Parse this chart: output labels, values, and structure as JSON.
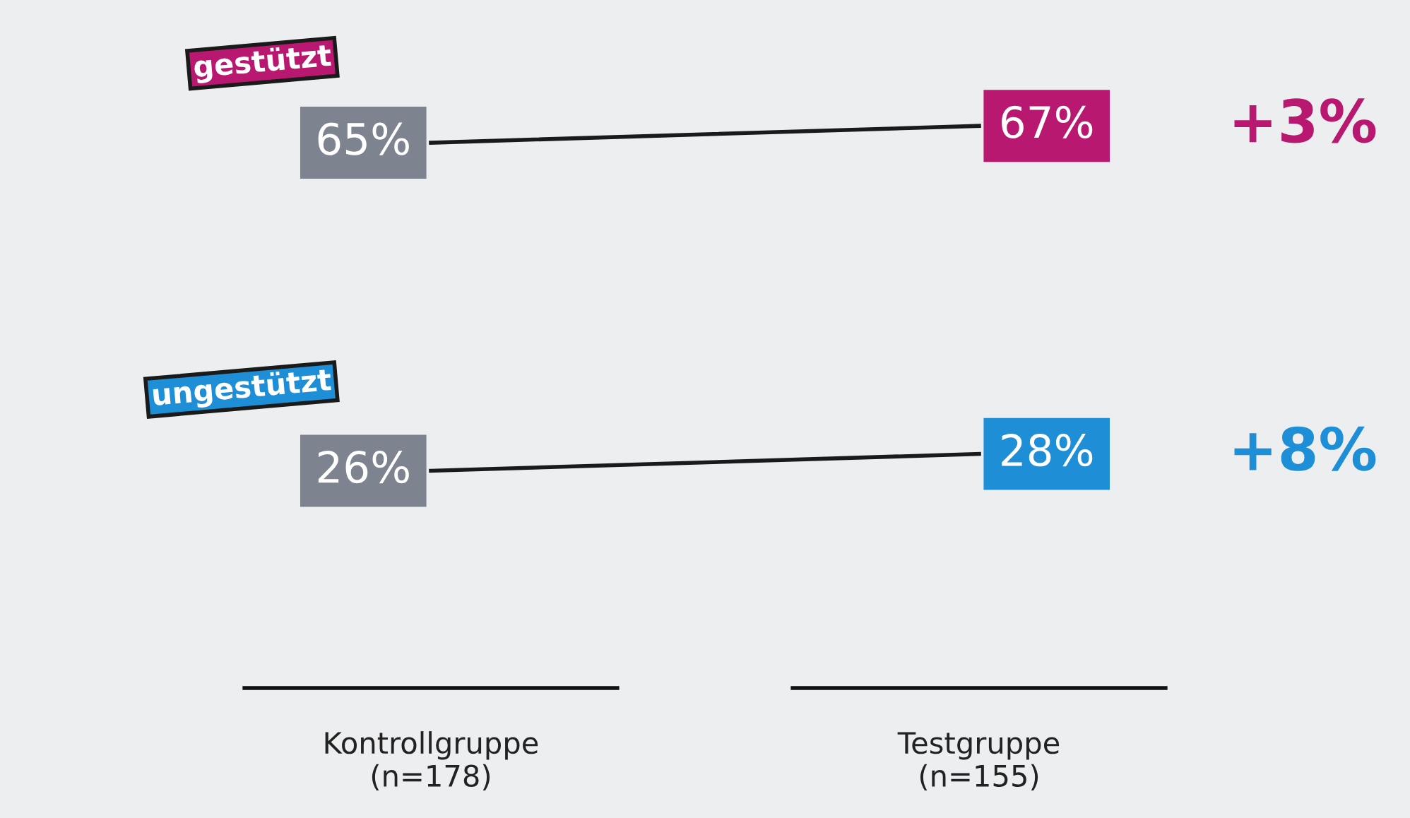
{
  "chart_data": {
    "type": "line",
    "categories": [
      "Kontrollgruppe\n(n=178)",
      "Testgruppe\n(n=155)"
    ],
    "series": [
      {
        "name": "gestützt",
        "color": "#1a1a1a",
        "colors": [
          "#7d848f",
          "#b8186f"
        ],
        "values": [
          65,
          67
        ],
        "value_labels": [
          "65%",
          "67%"
        ]
      },
      {
        "name": "ungestützt",
        "color": "#1a1a1a",
        "colors": [
          "#7d848f",
          "#1e8fd6"
        ],
        "values": [
          26,
          28
        ],
        "value_labels": [
          "26%",
          "28%"
        ]
      }
    ],
    "annotations": [
      "+3%",
      "+8%"
    ],
    "tick_labels": "x",
    "grid": false,
    "legend": false,
    "line_style": "solid"
  }
}
